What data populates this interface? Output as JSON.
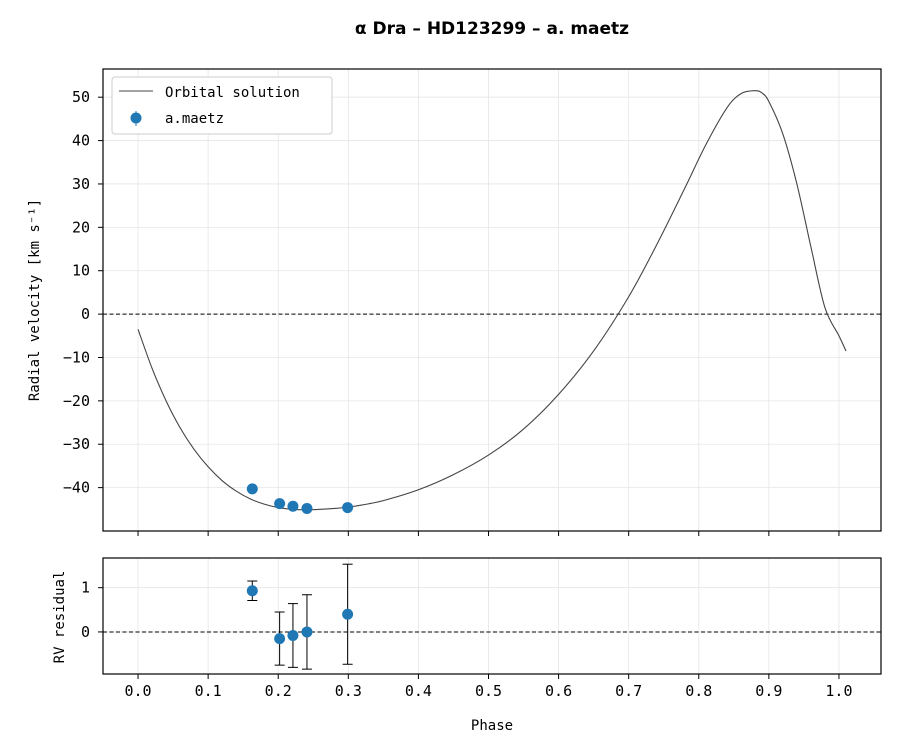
{
  "chart_data": [
    {
      "type": "scatter",
      "title": "α  Dra  –  HD123299  –  a. maetz",
      "xlabel": "",
      "ylabel": "Radial velocity [km s⁻¹]",
      "xlim": [
        -0.05,
        1.06
      ],
      "ylim": [
        -50,
        56.5
      ],
      "xticks": [
        "0.0",
        "0.1",
        "0.2",
        "0.3",
        "0.4",
        "0.5",
        "0.6",
        "0.7",
        "0.8",
        "0.9",
        "1.0"
      ],
      "yticks": [
        -40,
        -30,
        -20,
        -10,
        0,
        10,
        20,
        30,
        40,
        50
      ],
      "grid": true,
      "legend_position": "top-left",
      "reference_line": 0,
      "series": [
        {
          "name": "Orbital solution",
          "kind": "line",
          "color": "#444444",
          "x": [
            0.0,
            0.02,
            0.04,
            0.06,
            0.08,
            0.1,
            0.12,
            0.14,
            0.16,
            0.18,
            0.2,
            0.22,
            0.24,
            0.26,
            0.28,
            0.3,
            0.32,
            0.35,
            0.4,
            0.45,
            0.5,
            0.55,
            0.6,
            0.65,
            0.7,
            0.74,
            0.78,
            0.81,
            0.84,
            0.86,
            0.88,
            0.89,
            0.9,
            0.92,
            0.94,
            0.96,
            0.98,
            1.0,
            1.01
          ],
          "y": [
            -3.5,
            -12.5,
            -20.0,
            -26.2,
            -31.2,
            -35.2,
            -38.4,
            -40.8,
            -42.6,
            -43.8,
            -44.6,
            -45.0,
            -45.1,
            -45.0,
            -44.8,
            -44.5,
            -44.0,
            -43.0,
            -40.5,
            -37.0,
            -32.5,
            -26.5,
            -18.5,
            -8.5,
            4.0,
            16.0,
            29.0,
            39.0,
            47.5,
            50.8,
            51.5,
            51.0,
            49.0,
            41.5,
            30.0,
            15.5,
            1.5,
            -5.0,
            -8.5
          ]
        },
        {
          "name": "a.maetz",
          "kind": "scatter",
          "color": "#1f77b4",
          "x": [
            0.163,
            0.202,
            0.221,
            0.241,
            0.299
          ],
          "y": [
            -40.3,
            -43.7,
            -44.3,
            -44.8,
            -44.6
          ]
        }
      ]
    },
    {
      "type": "scatter",
      "title": "",
      "xlabel": "Phase",
      "ylabel": "RV residual",
      "xlim": [
        -0.05,
        1.06
      ],
      "ylim": [
        -0.95,
        1.67
      ],
      "xticks": [
        "0.0",
        "0.1",
        "0.2",
        "0.3",
        "0.4",
        "0.5",
        "0.6",
        "0.7",
        "0.8",
        "0.9",
        "1.0"
      ],
      "yticks": [
        0,
        1
      ],
      "grid": true,
      "reference_line": 0,
      "series": [
        {
          "name": "a.maetz",
          "color": "#1f77b4",
          "x": [
            0.163,
            0.202,
            0.221,
            0.241,
            0.299
          ],
          "y": [
            0.93,
            -0.15,
            -0.08,
            0.0,
            0.4
          ],
          "yerr": [
            0.22,
            0.6,
            0.72,
            0.84,
            1.13
          ]
        }
      ]
    }
  ]
}
